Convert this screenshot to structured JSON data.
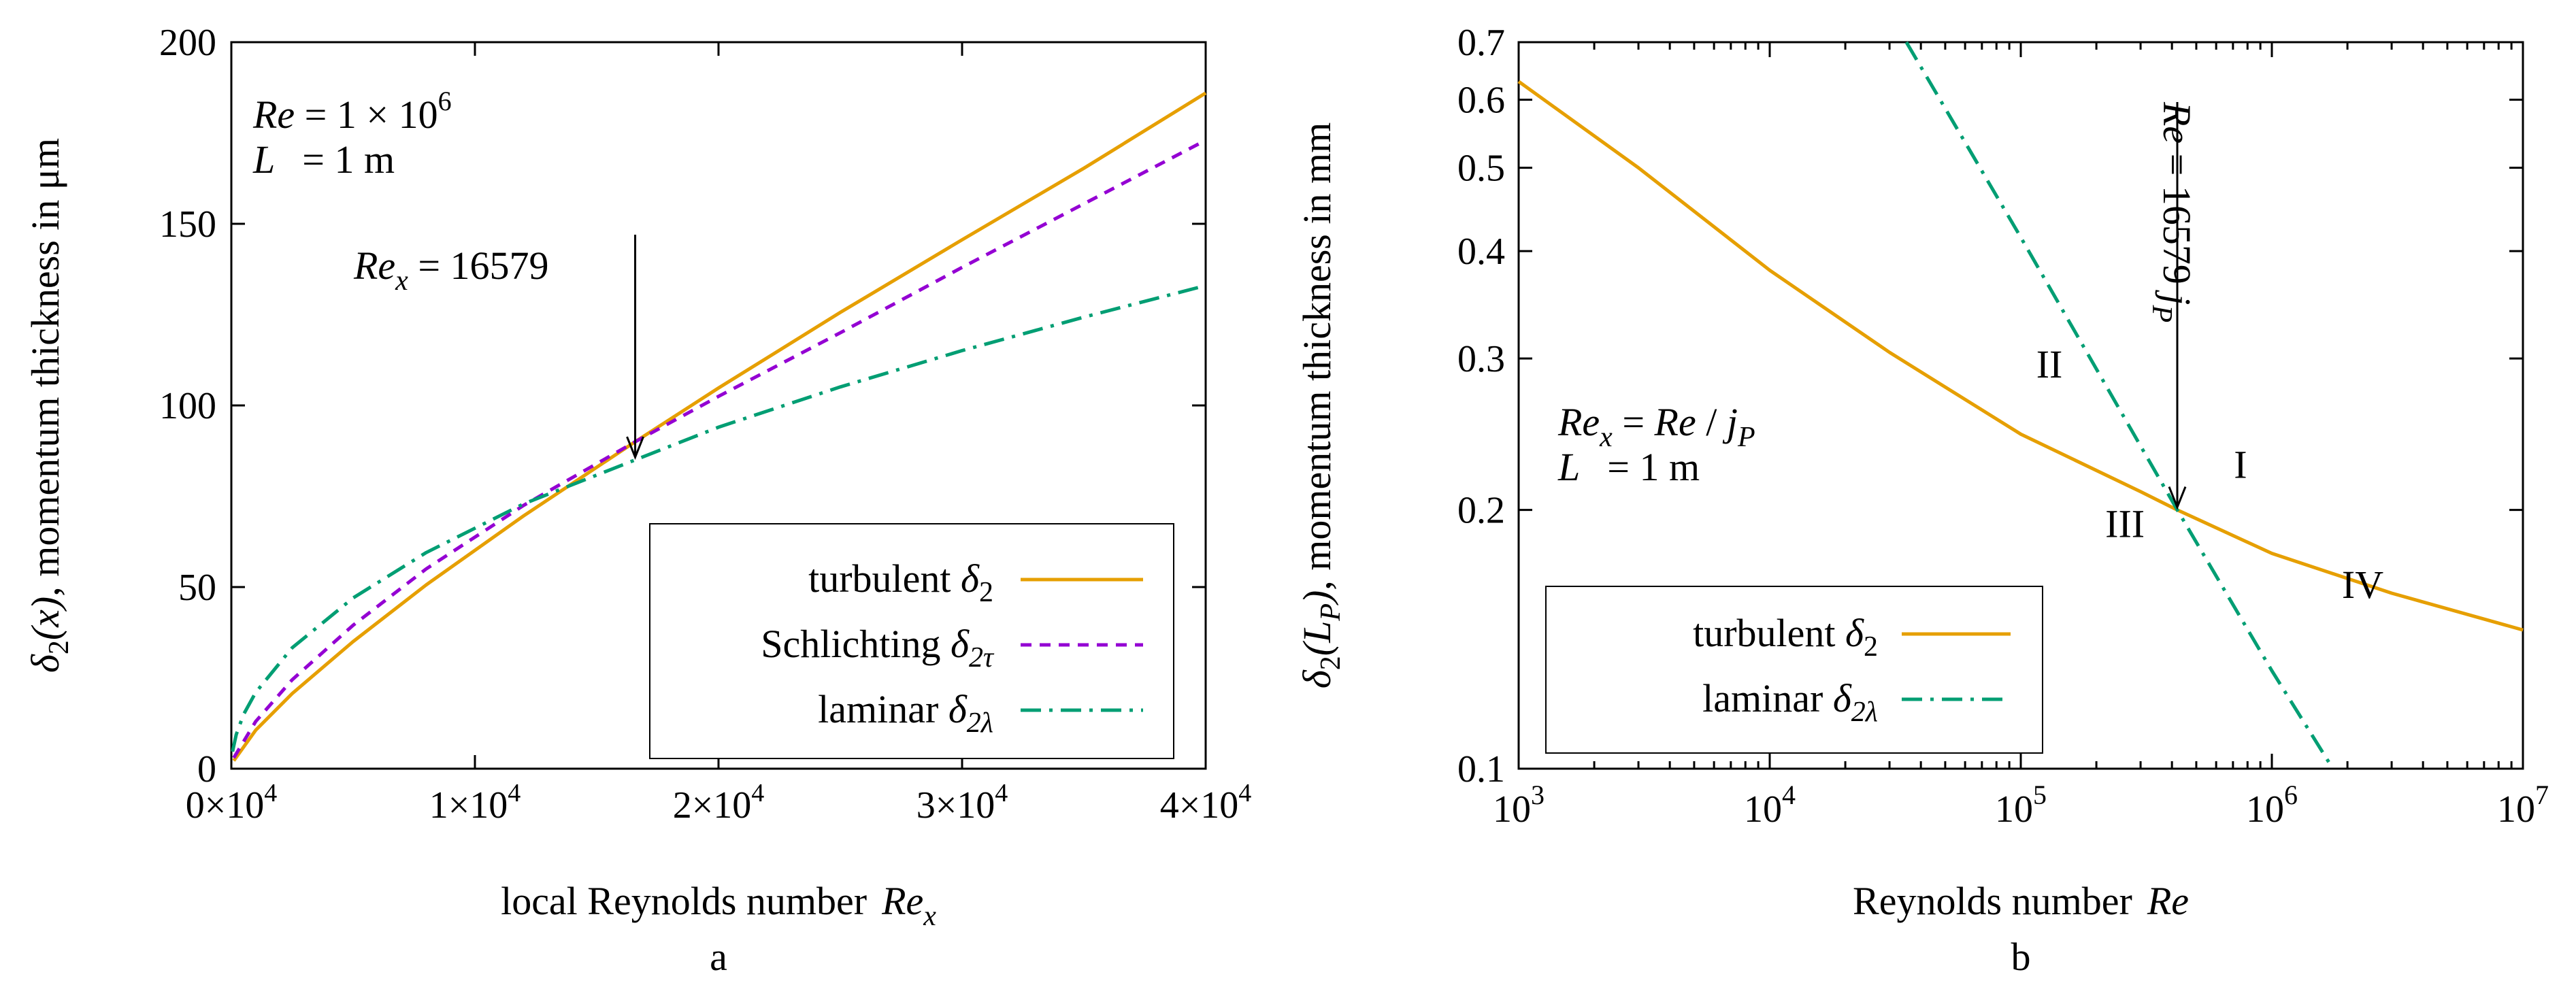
{
  "chart_data": [
    {
      "type": "line",
      "panel_label": "a",
      "xlabel": "local Reynolds number",
      "xlabel_symbol": "Re",
      "xlabel_sub": "x",
      "ylabel_symbol": "δ",
      "ylabel_sub": "2",
      "ylabel_arg": "(x)",
      "ylabel_rest": ", momentum thickness in μm",
      "xlim": [
        0,
        40000
      ],
      "ylim": [
        0,
        200
      ],
      "xticks": [
        0,
        10000,
        20000,
        30000,
        40000
      ],
      "xtick_labels": [
        "0×10",
        "1×10",
        "2×10",
        "3×10",
        "4×10"
      ],
      "xtick_exp": "4",
      "yticks": [
        0,
        50,
        100,
        150,
        200
      ],
      "ytick_labels": [
        "0",
        "50",
        "100",
        "150",
        "200"
      ],
      "grid": false,
      "legend_position": "bottom-right",
      "info_text": {
        "re_symbol": "Re",
        "re_value": " = 1 × 10",
        "re_exp": "6",
        "l_symbol": "L",
        "l_value": "= 1 m"
      },
      "annotation": {
        "symbol": "Re",
        "sub": "x",
        "text": " = 16579",
        "x": 16579,
        "y": 85
      },
      "series": [
        {
          "name": "turbulent",
          "symbol": "δ",
          "sub": "2",
          "color": "#e69f00",
          "dash": "solid",
          "x": [
            100,
            1000,
            2500,
            5000,
            8000,
            12000,
            16579,
            20000,
            25000,
            30000,
            35000,
            40000
          ],
          "y": [
            2.2,
            10.6,
            20.7,
            35.0,
            50.6,
            69.6,
            90.0,
            104.8,
            125.6,
            145.6,
            165.3,
            186.0
          ]
        },
        {
          "name": "Schlichting",
          "symbol": "δ",
          "sub": "2τ",
          "color": "#9400d3",
          "dash": "dashed",
          "x": [
            100,
            1000,
            2500,
            5000,
            8000,
            12000,
            16579,
            20000,
            25000,
            30000,
            35000,
            40000
          ],
          "y": [
            3.0,
            13.0,
            24.5,
            39.5,
            55.0,
            72.5,
            90.0,
            102.5,
            120.0,
            138.0,
            155.5,
            173.0
          ]
        },
        {
          "name": "laminar",
          "symbol": "δ",
          "sub": "2λ",
          "color": "#009e73",
          "dash": "dashdot",
          "x": [
            50,
            200,
            500,
            1000,
            2500,
            5000,
            8000,
            12000,
            16579,
            20000,
            25000,
            30000,
            35000,
            40000
          ],
          "y": [
            4.7,
            9.4,
            14.9,
            21.0,
            33.3,
            47.0,
            59.5,
            72.9,
            85.0,
            94.0,
            105.1,
            115.1,
            124.3,
            133.0
          ]
        }
      ]
    },
    {
      "type": "line",
      "panel_label": "b",
      "xlabel": "Reynolds number",
      "xlabel_symbol": "Re",
      "ylabel_symbol": "δ",
      "ylabel_sub": "2",
      "ylabel_arg_open": "(L",
      "ylabel_arg_sub": "P",
      "ylabel_arg_close": ")",
      "ylabel_rest": ", momentum thickness in mm",
      "x_scale": "log",
      "y_scale": "log",
      "xlim": [
        1000,
        10000000
      ],
      "ylim": [
        0.1,
        0.7
      ],
      "xticks": [
        1000,
        10000,
        100000,
        1000000,
        10000000
      ],
      "xtick_base": "10",
      "xtick_exps": [
        "3",
        "4",
        "5",
        "6",
        "7"
      ],
      "yticks": [
        0.1,
        0.2,
        0.3,
        0.4,
        0.5,
        0.6,
        0.7
      ],
      "ytick_labels": [
        "0.1",
        "0.2",
        "0.3",
        "0.4",
        "0.5",
        "0.6",
        "0.7"
      ],
      "grid": false,
      "legend_position": "bottom-left",
      "info_text": {
        "re_symbol": "Re",
        "re_sub": "x",
        "re_mid": " = ",
        "re_symbol2": "Re",
        "re_slash": " / ",
        "j_symbol": "j",
        "j_sub": "P",
        "l_symbol": "L",
        "l_value": "= 1 m"
      },
      "annotation": {
        "symbol": "Re",
        "text": " = 16579 ",
        "j_symbol": "j",
        "j_sub": "P",
        "x": 420000,
        "y": 0.2
      },
      "regions": [
        {
          "label": "I",
          "x": 750000,
          "y": 0.218
        },
        {
          "label": "II",
          "x": 130000,
          "y": 0.285
        },
        {
          "label": "III",
          "x": 260000,
          "y": 0.186
        },
        {
          "label": "IV",
          "x": 2300000,
          "y": 0.158
        }
      ],
      "series": [
        {
          "name": "turbulent",
          "symbol": "δ",
          "sub": "2",
          "color": "#e69f00",
          "dash": "solid",
          "x": [
            1000,
            3000,
            10000,
            30000,
            100000,
            300000,
            420000,
            1000000,
            3000000,
            10000000
          ],
          "y": [
            0.63,
            0.5,
            0.38,
            0.305,
            0.245,
            0.21,
            0.2,
            0.178,
            0.16,
            0.145
          ]
        },
        {
          "name": "laminar",
          "symbol": "δ",
          "sub": "2λ",
          "color": "#009e73",
          "dash": "dashdot",
          "x": [
            35000,
            100000,
            420000,
            1000000,
            1750000
          ],
          "y": [
            0.7,
            0.415,
            0.2,
            0.13,
            0.1
          ]
        }
      ]
    }
  ]
}
